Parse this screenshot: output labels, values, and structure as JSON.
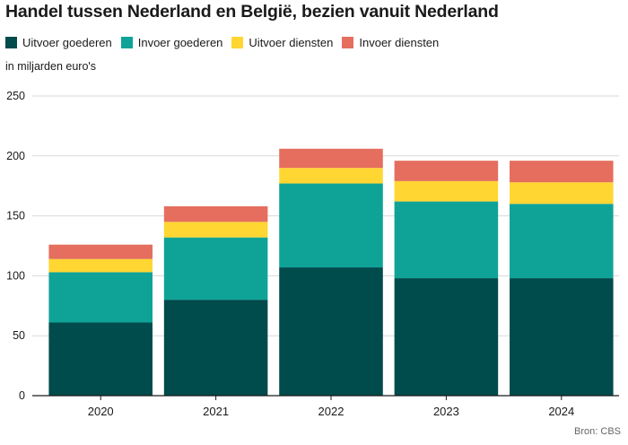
{
  "chart_data": {
    "type": "bar",
    "stacked": true,
    "title": "Handel tussen Nederland en België, bezien vanuit Nederland",
    "unit_label": "in miljarden euro's",
    "categories": [
      "2020",
      "2021",
      "2022",
      "2023",
      "2024"
    ],
    "series": [
      {
        "name": "Uitvoer goederen",
        "color": "#004b4b",
        "values": [
          61,
          80,
          107,
          98,
          98
        ]
      },
      {
        "name": "Invoer goederen",
        "color": "#0fa398",
        "values": [
          42,
          52,
          70,
          64,
          62
        ]
      },
      {
        "name": "Uitvoer diensten",
        "color": "#ffd632",
        "values": [
          11,
          13,
          13,
          17,
          18
        ]
      },
      {
        "name": "Invoer diensten",
        "color": "#e56e5e",
        "values": [
          12,
          13,
          16,
          17,
          18
        ]
      }
    ],
    "yticks": [
      "0",
      "50",
      "100",
      "150",
      "200",
      "250"
    ],
    "ylim": [
      0,
      250
    ],
    "grid": true,
    "legend_position": "top-left",
    "source": "Bron:  CBS"
  }
}
